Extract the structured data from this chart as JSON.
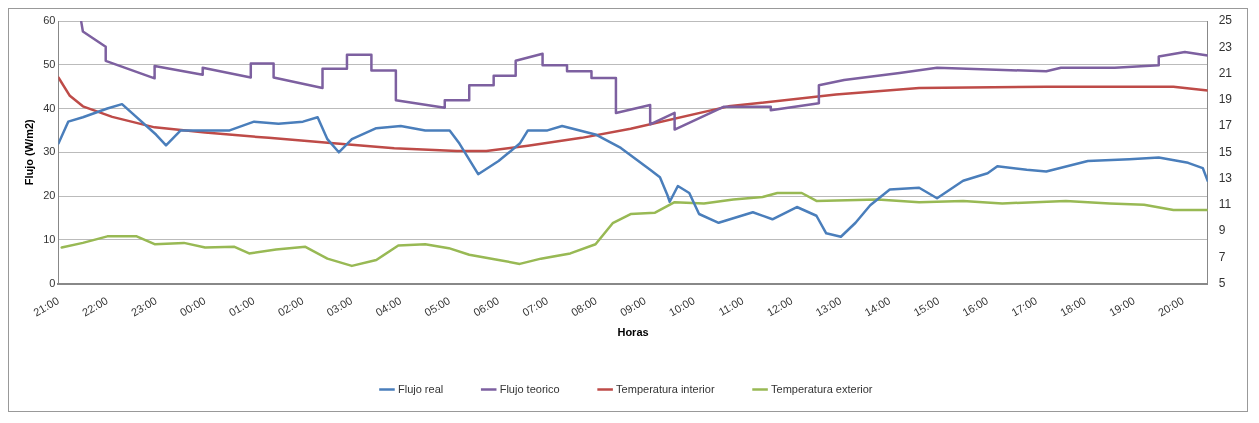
{
  "chart_data": {
    "type": "line",
    "xlabel": "Horas",
    "ylabel": "Flujo (W/m2)",
    "xlim": [
      "2000-01-01T21:00",
      "2000-01-02T20:30"
    ],
    "xticks": [
      {
        "value": "2000-01-01T21:00",
        "label": "21:00"
      },
      {
        "value": "2000-01-01T22:00",
        "label": "22:00"
      },
      {
        "value": "2000-01-01T23:00",
        "label": "23:00"
      },
      {
        "value": "2000-01-02T00:00",
        "label": "00:00"
      },
      {
        "value": "2000-01-02T01:00",
        "label": "01:00"
      },
      {
        "value": "2000-01-02T02:00",
        "label": "02:00"
      },
      {
        "value": "2000-01-02T03:00",
        "label": "03:00"
      },
      {
        "value": "2000-01-02T04:00",
        "label": "04:00"
      },
      {
        "value": "2000-01-02T05:00",
        "label": "05:00"
      },
      {
        "value": "2000-01-02T06:00",
        "label": "06:00"
      },
      {
        "value": "2000-01-02T07:00",
        "label": "07:00"
      },
      {
        "value": "2000-01-02T08:00",
        "label": "08:00"
      },
      {
        "value": "2000-01-02T09:00",
        "label": "09:00"
      },
      {
        "value": "2000-01-02T10:00",
        "label": "10:00"
      },
      {
        "value": "2000-01-02T11:00",
        "label": "11:00"
      },
      {
        "value": "2000-01-02T12:00",
        "label": "12:00"
      },
      {
        "value": "2000-01-02T13:00",
        "label": "13:00"
      },
      {
        "value": "2000-01-02T14:00",
        "label": "14:00"
      },
      {
        "value": "2000-01-02T15:00",
        "label": "15:00"
      },
      {
        "value": "2000-01-02T16:00",
        "label": "16:00"
      },
      {
        "value": "2000-01-02T17:00",
        "label": "17:00"
      },
      {
        "value": "2000-01-02T18:00",
        "label": "18:00"
      },
      {
        "value": "2000-01-02T19:00",
        "label": "19:00"
      },
      {
        "value": "2000-01-02T20:00",
        "label": "20:00"
      }
    ],
    "ylim": [
      0,
      60
    ],
    "yticks": [
      0,
      10,
      20,
      30,
      40,
      50,
      60
    ],
    "y2lim": [
      5,
      25
    ],
    "y2ticks": [
      5,
      7,
      9,
      11,
      13,
      15,
      17,
      19,
      21,
      23,
      25
    ],
    "grid": "y",
    "legend": "bottom",
    "marker": "none",
    "line_style": "solid",
    "series": [
      {
        "name": "Flujo real",
        "color": "#4a7ebb",
        "x": [
          "2000-01-01T21:00",
          "2000-01-01T21:12",
          "2000-01-01T21:30",
          "2000-01-01T22:00",
          "2000-01-01T22:18",
          "2000-01-01T22:30",
          "2000-01-01T23:00",
          "2000-01-01T23:12",
          "2000-01-01T23:30",
          "2000-01-02T00:00",
          "2000-01-02T00:30",
          "2000-01-02T01:00",
          "2000-01-02T01:30",
          "2000-01-02T02:00",
          "2000-01-02T02:18",
          "2000-01-02T02:30",
          "2000-01-02T02:44",
          "2000-01-02T03:00",
          "2000-01-02T03:30",
          "2000-01-02T04:00",
          "2000-01-02T04:30",
          "2000-01-02T05:00",
          "2000-01-02T05:12",
          "2000-01-02T05:35",
          "2000-01-02T06:00",
          "2000-01-02T06:26",
          "2000-01-02T06:36",
          "2000-01-02T07:00",
          "2000-01-02T07:18",
          "2000-01-02T08:00",
          "2000-01-02T08:30",
          "2000-01-02T09:06",
          "2000-01-02T09:18",
          "2000-01-02T09:27",
          "2000-01-02T09:30",
          "2000-01-02T09:40",
          "2000-01-02T09:54",
          "2000-01-02T10:06",
          "2000-01-02T10:30",
          "2000-01-02T11:12",
          "2000-01-02T11:36",
          "2000-01-02T12:06",
          "2000-01-02T12:30",
          "2000-01-02T12:42",
          "2000-01-02T13:00",
          "2000-01-02T13:18",
          "2000-01-02T13:36",
          "2000-01-02T14:00",
          "2000-01-02T14:36",
          "2000-01-02T14:58",
          "2000-01-02T15:30",
          "2000-01-02T16:00",
          "2000-01-02T16:12",
          "2000-01-02T16:48",
          "2000-01-02T17:12",
          "2000-01-02T18:03",
          "2000-01-02T18:54",
          "2000-01-02T19:30",
          "2000-01-02T20:06",
          "2000-01-02T20:24",
          "2000-01-02T20:30"
        ],
        "values": [
          32,
          37,
          38,
          40,
          41,
          39,
          34,
          31.6,
          35,
          35,
          35,
          37,
          36.5,
          37,
          38,
          33,
          30,
          33,
          35.5,
          36,
          35,
          35,
          32,
          25,
          28,
          32,
          35,
          35,
          36,
          34,
          31,
          26,
          24.3,
          20.3,
          18.7,
          22.3,
          20.7,
          15.9,
          13.9,
          16.3,
          14.7,
          17.5,
          15.5,
          11.5,
          10.7,
          13.9,
          17.9,
          21.5,
          21.9,
          19.5,
          23.5,
          25.2,
          26.8,
          26,
          25.6,
          28,
          28.4,
          28.8,
          27.6,
          26.4,
          23.5
        ]
      },
      {
        "name": "Flujo teorico",
        "color": "#7d60a0",
        "x": [
          "2000-01-01T21:28",
          "2000-01-01T21:30",
          "2000-01-01T21:58",
          "2000-01-01T21:58",
          "2000-01-01T22:58",
          "2000-01-01T22:58",
          "2000-01-01T23:57",
          "2000-01-01T23:57",
          "2000-01-02T00:56",
          "2000-01-02T00:56",
          "2000-01-02T01:24",
          "2000-01-02T01:24",
          "2000-01-02T02:24",
          "2000-01-02T02:24",
          "2000-01-02T02:54",
          "2000-01-02T02:54",
          "2000-01-02T03:24",
          "2000-01-02T03:24",
          "2000-01-02T03:54",
          "2000-01-02T03:54",
          "2000-01-02T04:54",
          "2000-01-02T04:54",
          "2000-01-02T05:24",
          "2000-01-02T05:24",
          "2000-01-02T05:54",
          "2000-01-02T05:54",
          "2000-01-02T06:21",
          "2000-01-02T06:21",
          "2000-01-02T06:54",
          "2000-01-02T06:54",
          "2000-01-02T07:24",
          "2000-01-02T07:24",
          "2000-01-02T07:54",
          "2000-01-02T07:54",
          "2000-01-02T08:24",
          "2000-01-02T08:24",
          "2000-01-02T09:06",
          "2000-01-02T09:06",
          "2000-01-02T09:36",
          "2000-01-02T09:36",
          "2000-01-02T10:36",
          "2000-01-02T11:34",
          "2000-01-02T11:34",
          "2000-01-02T12:33",
          "2000-01-02T12:33",
          "2000-01-02T13:04",
          "2000-01-02T14:12",
          "2000-01-02T14:58",
          "2000-01-02T17:12",
          "2000-01-02T17:30",
          "2000-01-02T18:36",
          "2000-01-02T19:30",
          "2000-01-02T19:30",
          "2000-01-02T20:02",
          "2000-01-02T20:30"
        ],
        "values": [
          59.8,
          57.6,
          54.1,
          50.9,
          46.9,
          49.7,
          47.7,
          49.3,
          47.1,
          50.3,
          50.3,
          47.1,
          44.7,
          49.1,
          49.1,
          52.3,
          52.3,
          48.7,
          48.7,
          41.9,
          40.2,
          41.9,
          41.9,
          45.3,
          45.3,
          47.5,
          47.5,
          50.9,
          52.5,
          49.9,
          49.9,
          48.5,
          48.5,
          47,
          47,
          39,
          40.8,
          36.4,
          39,
          35.2,
          40.4,
          40.4,
          39.6,
          41.2,
          45.3,
          46.5,
          48.1,
          49.3,
          48.5,
          49.3,
          49.3,
          49.9,
          51.9,
          52.9,
          52.1
        ]
      },
      {
        "name": "Temperatura interior",
        "color": "#be4b48",
        "axis": "y2",
        "x": [
          "2000-01-01T21:00",
          "2000-01-01T21:14",
          "2000-01-01T21:30",
          "2000-01-01T22:06",
          "2000-01-01T22:58",
          "2000-01-02T00:00",
          "2000-01-02T01:18",
          "2000-01-02T02:34",
          "2000-01-02T03:52",
          "2000-01-02T05:09",
          "2000-01-02T05:45",
          "2000-01-02T06:36",
          "2000-01-02T07:42",
          "2000-01-02T08:42",
          "2000-01-02T10:42",
          "2000-01-02T12:54",
          "2000-01-02T14:36",
          "2000-01-02T17:12",
          "2000-01-02T19:48",
          "2000-01-02T20:30"
        ],
        "values": [
          20.7,
          19.3,
          18.5,
          17.7,
          16.9,
          16.5,
          16.1,
          15.7,
          15.3,
          15.1,
          15.1,
          15.5,
          16.1,
          16.8,
          18.5,
          19.4,
          19.9,
          20,
          20,
          19.7
        ]
      },
      {
        "name": "Temperatura exterior",
        "color": "#98b954",
        "axis": "y2",
        "x": [
          "2000-01-01T21:04",
          "2000-01-01T21:30",
          "2000-01-01T22:00",
          "2000-01-01T22:36",
          "2000-01-01T22:58",
          "2000-01-01T23:34",
          "2000-01-02T00:00",
          "2000-01-02T00:36",
          "2000-01-02T00:54",
          "2000-01-02T01:27",
          "2000-01-02T02:03",
          "2000-01-02T02:30",
          "2000-01-02T03:00",
          "2000-01-02T03:30",
          "2000-01-02T03:57",
          "2000-01-02T04:30",
          "2000-01-02T04:59",
          "2000-01-02T05:24",
          "2000-01-02T06:00",
          "2000-01-02T06:26",
          "2000-01-02T06:52",
          "2000-01-02T07:28",
          "2000-01-02T07:59",
          "2000-01-02T08:20",
          "2000-01-02T08:42",
          "2000-01-02T09:12",
          "2000-01-02T09:36",
          "2000-01-02T10:12",
          "2000-01-02T10:48",
          "2000-01-02T11:24",
          "2000-01-02T11:42",
          "2000-01-02T12:12",
          "2000-01-02T12:30",
          "2000-01-02T13:45",
          "2000-01-02T14:36",
          "2000-01-02T15:30",
          "2000-01-02T16:18",
          "2000-01-02T17:36",
          "2000-01-02T18:30",
          "2000-01-02T19:12",
          "2000-01-02T19:48",
          "2000-01-02T20:30"
        ],
        "values": [
          7.75,
          8.1,
          8.6,
          8.6,
          8,
          8.1,
          7.75,
          7.8,
          7.3,
          7.6,
          7.8,
          6.9,
          6.35,
          6.8,
          7.9,
          8,
          7.7,
          7.2,
          6.8,
          6.5,
          6.9,
          7.3,
          8,
          9.6,
          10.3,
          10.4,
          11.2,
          11.1,
          11.4,
          11.6,
          11.9,
          11.9,
          11.3,
          11.4,
          11.2,
          11.3,
          11.1,
          11.3,
          11.1,
          11,
          10.6,
          10.6
        ]
      }
    ]
  }
}
